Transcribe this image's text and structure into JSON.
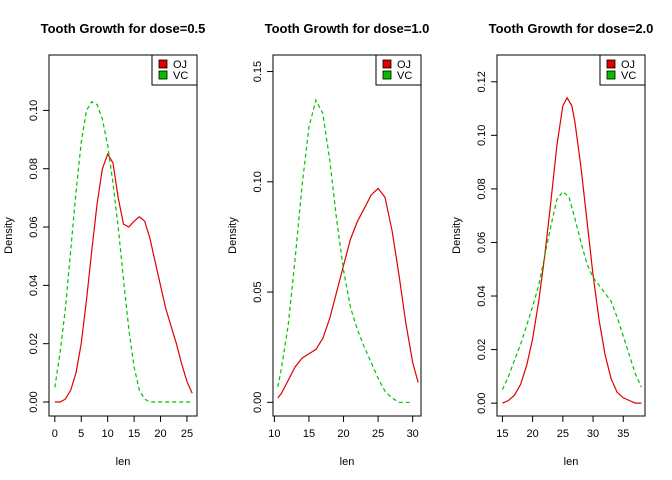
{
  "chart_data": [
    {
      "type": "line",
      "title": "Tooth Growth for dose=0.5",
      "xlabel": "len",
      "ylabel": "Density",
      "xlim": [
        -1.1,
        26.9
      ],
      "ylim": [
        -0.0048,
        0.119
      ],
      "xticks": [
        0,
        5,
        10,
        15,
        20,
        25
      ],
      "yticks": [
        0.0,
        0.02,
        0.04,
        0.06,
        0.08,
        0.1
      ],
      "ytick_labels": [
        "0.00",
        "0.02",
        "0.04",
        "0.06",
        "0.08",
        "0.10"
      ],
      "legend_position": "top-right",
      "series": [
        {
          "name": "OJ",
          "color": "#e00000",
          "dash": "solid",
          "points": [
            [
              0,
              0.0
            ],
            [
              1,
              0.0
            ],
            [
              2,
              0.001
            ],
            [
              3,
              0.004
            ],
            [
              4,
              0.01
            ],
            [
              5,
              0.02
            ],
            [
              6,
              0.035
            ],
            [
              7,
              0.052
            ],
            [
              8,
              0.068
            ],
            [
              9,
              0.08
            ],
            [
              10,
              0.085
            ],
            [
              11,
              0.082
            ],
            [
              12,
              0.07
            ],
            [
              13,
              0.061
            ],
            [
              14,
              0.06
            ],
            [
              15,
              0.062
            ],
            [
              16,
              0.0635
            ],
            [
              17,
              0.062
            ],
            [
              18,
              0.056
            ],
            [
              19,
              0.048
            ],
            [
              20,
              0.04
            ],
            [
              21,
              0.032
            ],
            [
              22,
              0.026
            ],
            [
              23,
              0.02
            ],
            [
              24,
              0.013
            ],
            [
              25,
              0.007
            ],
            [
              26,
              0.003
            ]
          ]
        },
        {
          "name": "VC",
          "color": "#00c000",
          "dash": "dashed",
          "points": [
            [
              0,
              0.005
            ],
            [
              1,
              0.017
            ],
            [
              2,
              0.032
            ],
            [
              3,
              0.052
            ],
            [
              4,
              0.072
            ],
            [
              5,
              0.089
            ],
            [
              6,
              0.1
            ],
            [
              7,
              0.103
            ],
            [
              8,
              0.102
            ],
            [
              9,
              0.097
            ],
            [
              10,
              0.088
            ],
            [
              11,
              0.075
            ],
            [
              12,
              0.06
            ],
            [
              13,
              0.042
            ],
            [
              14,
              0.025
            ],
            [
              15,
              0.012
            ],
            [
              16,
              0.004
            ],
            [
              17,
              0.001
            ],
            [
              18,
              0.0
            ],
            [
              20,
              0.0
            ],
            [
              22,
              0.0
            ],
            [
              24,
              0.0
            ],
            [
              26,
              0.0
            ]
          ]
        }
      ]
    },
    {
      "type": "line",
      "title": "Tooth Growth for dose=1.0",
      "xlabel": "len",
      "ylabel": "Density",
      "xlim": [
        9.8,
        31.2
      ],
      "ylim": [
        -0.0062,
        0.1575
      ],
      "xticks": [
        10,
        15,
        20,
        25,
        30
      ],
      "yticks": [
        0.0,
        0.05,
        0.1,
        0.15
      ],
      "ytick_labels": [
        "0.00",
        "0.05",
        "0.10",
        "0.15"
      ],
      "legend_position": "top-right",
      "series": [
        {
          "name": "OJ",
          "color": "#e00000",
          "dash": "solid",
          "points": [
            [
              10.5,
              0.002
            ],
            [
              11,
              0.004
            ],
            [
              12,
              0.01
            ],
            [
              13,
              0.016
            ],
            [
              14,
              0.02
            ],
            [
              15,
              0.022
            ],
            [
              16,
              0.024
            ],
            [
              17,
              0.029
            ],
            [
              18,
              0.038
            ],
            [
              19,
              0.05
            ],
            [
              20,
              0.062
            ],
            [
              21,
              0.074
            ],
            [
              22,
              0.082
            ],
            [
              23,
              0.088
            ],
            [
              24,
              0.094
            ],
            [
              25,
              0.097
            ],
            [
              26,
              0.093
            ],
            [
              27,
              0.078
            ],
            [
              28,
              0.058
            ],
            [
              29,
              0.036
            ],
            [
              30,
              0.018
            ],
            [
              30.8,
              0.009
            ]
          ]
        },
        {
          "name": "VC",
          "color": "#00c000",
          "dash": "dashed",
          "points": [
            [
              10.5,
              0.007
            ],
            [
              11,
              0.015
            ],
            [
              12,
              0.035
            ],
            [
              13,
              0.065
            ],
            [
              14,
              0.098
            ],
            [
              15,
              0.125
            ],
            [
              16,
              0.137
            ],
            [
              17,
              0.131
            ],
            [
              18,
              0.11
            ],
            [
              19,
              0.083
            ],
            [
              20,
              0.06
            ],
            [
              21,
              0.043
            ],
            [
              22,
              0.033
            ],
            [
              23,
              0.025
            ],
            [
              24,
              0.018
            ],
            [
              25,
              0.011
            ],
            [
              26,
              0.005
            ],
            [
              27,
              0.002
            ],
            [
              28,
              0.0
            ],
            [
              30,
              0.0
            ]
          ]
        }
      ]
    },
    {
      "type": "line",
      "title": "Tooth Growth for dose=2.0",
      "xlabel": "len",
      "ylabel": "Density",
      "xlim": [
        14.1,
        38.6
      ],
      "ylim": [
        -0.0048,
        0.13
      ],
      "xticks": [
        15,
        20,
        25,
        30,
        35
      ],
      "yticks": [
        0.0,
        0.02,
        0.04,
        0.06,
        0.08,
        0.1,
        0.12
      ],
      "ytick_labels": [
        "0.00",
        "0.02",
        "0.04",
        "0.06",
        "0.08",
        "0.10",
        "0.12"
      ],
      "legend_position": "top-right",
      "series": [
        {
          "name": "OJ",
          "color": "#e00000",
          "dash": "solid",
          "points": [
            [
              15,
              0.0
            ],
            [
              16,
              0.001
            ],
            [
              17,
              0.003
            ],
            [
              18,
              0.007
            ],
            [
              19,
              0.014
            ],
            [
              20,
              0.024
            ],
            [
              21,
              0.038
            ],
            [
              22,
              0.055
            ],
            [
              23,
              0.075
            ],
            [
              24,
              0.096
            ],
            [
              25,
              0.111
            ],
            [
              25.7,
              0.114
            ],
            [
              26.5,
              0.111
            ],
            [
              27,
              0.105
            ],
            [
              28,
              0.088
            ],
            [
              29,
              0.068
            ],
            [
              30,
              0.048
            ],
            [
              31,
              0.031
            ],
            [
              32,
              0.018
            ],
            [
              33,
              0.009
            ],
            [
              34,
              0.004
            ],
            [
              35,
              0.002
            ],
            [
              36,
              0.001
            ],
            [
              37,
              0.0
            ],
            [
              38,
              0.0
            ]
          ]
        },
        {
          "name": "VC",
          "color": "#00c000",
          "dash": "dashed",
          "points": [
            [
              15,
              0.005
            ],
            [
              16,
              0.01
            ],
            [
              17,
              0.016
            ],
            [
              18,
              0.022
            ],
            [
              19,
              0.029
            ],
            [
              20,
              0.036
            ],
            [
              21,
              0.044
            ],
            [
              22,
              0.055
            ],
            [
              23,
              0.066
            ],
            [
              24,
              0.076
            ],
            [
              25,
              0.079
            ],
            [
              26,
              0.077
            ],
            [
              27,
              0.069
            ],
            [
              28,
              0.06
            ],
            [
              29,
              0.052
            ],
            [
              30,
              0.047
            ],
            [
              31,
              0.044
            ],
            [
              32,
              0.041
            ],
            [
              33,
              0.038
            ],
            [
              34,
              0.032
            ],
            [
              35,
              0.025
            ],
            [
              36,
              0.018
            ],
            [
              37,
              0.011
            ],
            [
              38,
              0.006
            ]
          ]
        }
      ]
    }
  ]
}
